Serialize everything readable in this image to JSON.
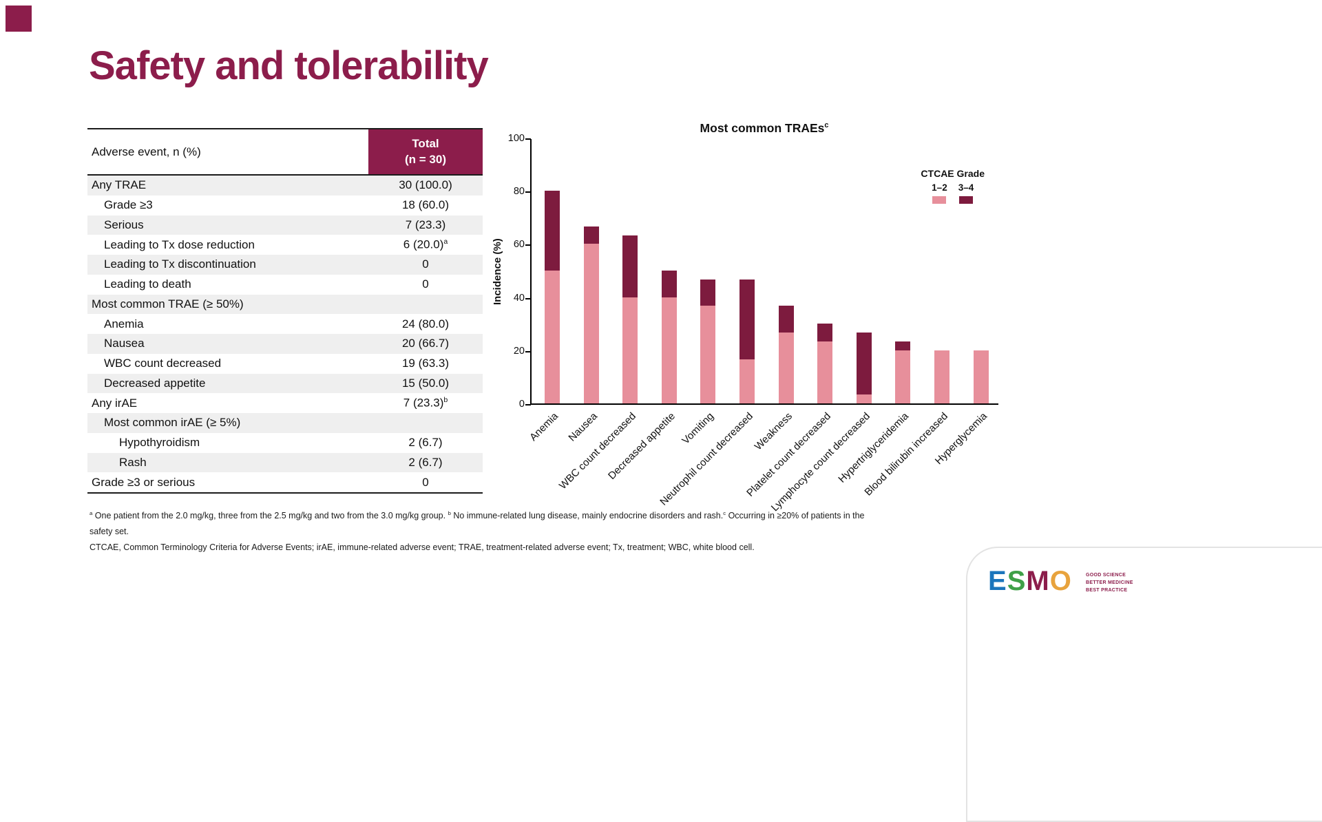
{
  "slide": {
    "title": "Safety and tolerability",
    "colors": {
      "accent": "#8C1D4B",
      "bar_dark": "#7D1B3E",
      "bar_pink": "#E78F9B",
      "row_alt": "#EFEFEF"
    }
  },
  "table": {
    "header": {
      "col1": "Adverse event, n (%)",
      "col2_line1": "Total",
      "col2_line2": "(n = 30)"
    },
    "rows": [
      {
        "label": "Any TRAE",
        "value": "30 (100.0)",
        "indent": 0
      },
      {
        "label": "Grade ≥3",
        "value": "18 (60.0)",
        "indent": 1
      },
      {
        "label": "Serious",
        "value": "7 (23.3)",
        "indent": 1
      },
      {
        "label": "Leading to Tx dose reduction",
        "value": "6 (20.0)",
        "sup": "a",
        "indent": 1
      },
      {
        "label": "Leading to Tx discontinuation",
        "value": "0",
        "indent": 1
      },
      {
        "label": "Leading to death",
        "value": "0",
        "indent": 1
      },
      {
        "label": "Most common TRAE (≥ 50%)",
        "value": "",
        "indent": 0
      },
      {
        "label": "Anemia",
        "value": "24 (80.0)",
        "indent": 1
      },
      {
        "label": "Nausea",
        "value": "20 (66.7)",
        "indent": 1
      },
      {
        "label": "WBC count decreased",
        "value": "19 (63.3)",
        "indent": 1
      },
      {
        "label": "Decreased appetite",
        "value": "15 (50.0)",
        "indent": 1
      },
      {
        "label": "Any irAE",
        "value": "7 (23.3)",
        "sup": "b",
        "indent": 0
      },
      {
        "label": "Most common irAE (≥ 5%)",
        "value": "",
        "indent": 1
      },
      {
        "label": "Hypothyroidism",
        "value": "2 (6.7)",
        "indent": 2
      },
      {
        "label": "Rash",
        "value": "2 (6.7)",
        "indent": 2
      },
      {
        "label": "Grade ≥3 or serious",
        "value": "0",
        "indent": 0
      }
    ]
  },
  "chart_data": {
    "type": "bar",
    "stacked": true,
    "title": "Most common TRAEs",
    "title_superscript": "c",
    "ylabel": "Incidence (%)",
    "ylim": [
      0,
      100
    ],
    "yticks": [
      0,
      20,
      40,
      60,
      80,
      100
    ],
    "grid": false,
    "legend_title": "CTCAE Grade",
    "legend_position": "upper right",
    "categories": [
      "Anemia",
      "Nausea",
      "WBC count decreased",
      "Decreased appetite",
      "Vomiting",
      "Neutrophil count decreased",
      "Weakness",
      "Platelet count decreased",
      "Lymphocyte count decreased",
      "Hypertriglyceridemia",
      "Blood bilirubin increased",
      "Hyperglycemia"
    ],
    "series": [
      {
        "name": "1–2",
        "color": "#E78F9B",
        "values": [
          50,
          60,
          40,
          40,
          36.7,
          16.7,
          26.7,
          23.3,
          3.3,
          20,
          20,
          20
        ]
      },
      {
        "name": "3–4",
        "color": "#7D1B3E",
        "values": [
          30,
          6.7,
          23.3,
          10,
          10,
          30,
          10,
          6.7,
          23.3,
          3.3,
          0,
          0
        ]
      }
    ]
  },
  "footnotes": {
    "line1_segments": [
      {
        "sup": "a",
        "text": " One patient from the 2.0 mg/kg, three from the 2.5 mg/kg and two from the 3.0 mg/kg group. "
      },
      {
        "sup": "b",
        "text": " No immune-related lung disease, mainly endocrine disorders and rash."
      },
      {
        "sup": "c",
        "text": " Occurring in ≥20% of patients in the safety set."
      }
    ],
    "line2": "CTCAE, Common Terminology Criteria for Adverse Events; irAE, immune-related adverse event; TRAE, treatment-related adverse event; Tx, treatment; WBC, white blood cell."
  },
  "logo": {
    "letters": [
      {
        "char": "E",
        "color": "#1B75BC"
      },
      {
        "char": "S",
        "color": "#3FA047"
      },
      {
        "char": "M",
        "color": "#8C1D4B"
      },
      {
        "char": "O",
        "color": "#E8A33D"
      }
    ],
    "tagline_lines": [
      "GOOD SCIENCE",
      "BETTER MEDICINE",
      "BEST PRACTICE"
    ]
  }
}
